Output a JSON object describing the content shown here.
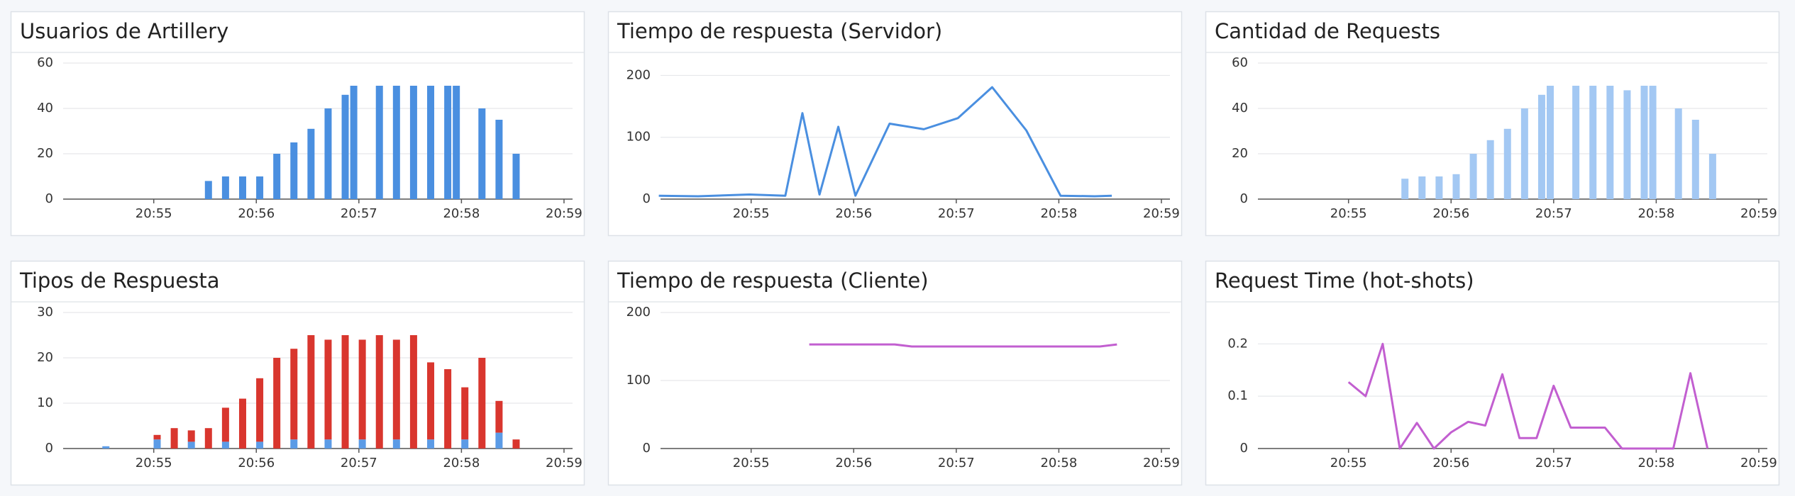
{
  "chart_data": [
    {
      "type": "bar",
      "title": "Usuarios de Artillery",
      "color": "#4a8fe0",
      "x": [
        "20:55:32",
        "20:55:42",
        "20:55:52",
        "20:56:02",
        "20:56:12",
        "20:56:22",
        "20:56:32",
        "20:56:42",
        "20:56:52",
        "20:56:57",
        "20:57:12",
        "20:57:22",
        "20:57:32",
        "20:57:42",
        "20:57:52",
        "20:57:57",
        "20:58:12",
        "20:58:22",
        "20:58:32"
      ],
      "values": [
        8,
        10,
        10,
        10,
        20,
        25,
        31,
        40,
        46,
        50,
        50,
        50,
        50,
        50,
        50,
        50,
        40,
        35,
        20
      ],
      "xlim": [
        "20:54:07",
        "20:59:05"
      ],
      "xticks": [
        "20:55",
        "20:56",
        "20:57",
        "20:58",
        "20:59"
      ],
      "ylim": [
        0,
        60
      ],
      "yticks": [
        0,
        20,
        40,
        60
      ],
      "grid": true
    },
    {
      "type": "line",
      "title": "Tiempo de respuesta (Servidor)",
      "color": "#4a8fe0",
      "x": [
        "20:54:06",
        "20:54:29",
        "20:54:59",
        "20:55:20",
        "20:55:30",
        "20:55:40",
        "20:55:51",
        "20:56:01",
        "20:56:21",
        "20:56:41",
        "20:57:01",
        "20:57:21",
        "20:57:41",
        "20:58:01",
        "20:58:21",
        "20:58:31"
      ],
      "values": [
        5.5,
        4.6,
        7.4,
        5.5,
        139,
        7.4,
        117,
        5.5,
        122,
        113,
        131,
        181,
        111,
        5.5,
        4.6,
        5.5
      ],
      "xlim": [
        "20:54:07",
        "20:59:05"
      ],
      "xticks": [
        "20:55",
        "20:56",
        "20:57",
        "20:58",
        "20:59"
      ],
      "ylim": [
        0,
        220
      ],
      "yticks": [
        0,
        100,
        200
      ],
      "grid": true
    },
    {
      "type": "bar",
      "title": "Cantidad de Requests",
      "color": "#a3c8f3",
      "x": [
        "20:55:33",
        "20:55:43",
        "20:55:53",
        "20:56:03",
        "20:56:13",
        "20:56:23",
        "20:56:33",
        "20:56:43",
        "20:56:53",
        "20:56:58",
        "20:57:13",
        "20:57:23",
        "20:57:33",
        "20:57:43",
        "20:57:53",
        "20:57:58",
        "20:58:13",
        "20:58:23",
        "20:58:33"
      ],
      "values": [
        9,
        10,
        10,
        11,
        20,
        26,
        31,
        40,
        46,
        50,
        50,
        50,
        50,
        48,
        50,
        50,
        40,
        35,
        20
      ],
      "xlim": [
        "20:54:07",
        "20:59:05"
      ],
      "xticks": [
        "20:55",
        "20:56",
        "20:57",
        "20:58",
        "20:59"
      ],
      "ylim": [
        0,
        60
      ],
      "yticks": [
        0,
        20,
        40,
        60
      ],
      "grid": true
    },
    {
      "type": "stacked",
      "title": "Tipos de Respuesta",
      "x": [
        "20:54:32",
        "20:55:02",
        "20:55:12",
        "20:55:22",
        "20:55:32",
        "20:55:42",
        "20:55:52",
        "20:56:02",
        "20:56:12",
        "20:56:22",
        "20:56:32",
        "20:56:42",
        "20:56:52",
        "20:57:02",
        "20:57:12",
        "20:57:22",
        "20:57:32",
        "20:57:42",
        "20:57:52",
        "20:58:02",
        "20:58:12",
        "20:58:22",
        "20:58:32"
      ],
      "series": [
        {
          "color": "#5b9be6",
          "values": [
            0.5,
            2,
            0,
            1.5,
            0,
            1.5,
            0,
            1.5,
            0,
            2,
            0,
            2,
            0,
            2,
            0,
            2,
            0,
            2,
            0,
            2,
            0,
            3.5,
            0
          ]
        },
        {
          "color": "#d9362e",
          "values": [
            0,
            1,
            4.5,
            2.5,
            4.5,
            7.5,
            11,
            14,
            20,
            20,
            25,
            22,
            25,
            22,
            25,
            22,
            25,
            17,
            17.5,
            11.5,
            20,
            7,
            2
          ]
        }
      ],
      "xlim": [
        "20:54:07",
        "20:59:05"
      ],
      "xticks": [
        "20:55",
        "20:56",
        "20:57",
        "20:58",
        "20:59"
      ],
      "ylim": [
        0,
        30
      ],
      "yticks": [
        0,
        10,
        20,
        30
      ],
      "grid": true
    },
    {
      "type": "line",
      "title": "Tiempo de respuesta (Cliente)",
      "color": "#c25fd0",
      "x": [
        "20:55:34",
        "20:55:44",
        "20:55:54",
        "20:56:04",
        "20:56:14",
        "20:56:24",
        "20:56:34",
        "20:56:44",
        "20:56:54",
        "20:57:04",
        "20:57:14",
        "20:57:24",
        "20:57:34",
        "20:57:44",
        "20:57:54",
        "20:58:04",
        "20:58:14",
        "20:58:24",
        "20:58:34"
      ],
      "values": [
        153,
        153,
        153,
        153,
        153,
        153,
        150,
        150,
        150,
        150,
        150,
        150,
        150,
        150,
        150,
        150,
        150,
        150,
        153
      ],
      "xlim": [
        "20:54:07",
        "20:59:05"
      ],
      "xticks": [
        "20:55",
        "20:56",
        "20:57",
        "20:58",
        "20:59"
      ],
      "ylim": [
        0,
        200
      ],
      "yticks": [
        0,
        100,
        200
      ],
      "grid": true
    },
    {
      "type": "line",
      "title": "Request Time (hot-shots)",
      "color": "#c25fd0",
      "x": [
        "20:55:00",
        "20:55:10",
        "20:55:20",
        "20:55:30",
        "20:55:40",
        "20:55:50",
        "20:56:00",
        "20:56:10",
        "20:56:20",
        "20:56:30",
        "20:56:40",
        "20:56:50",
        "20:57:00",
        "20:57:10",
        "20:57:20",
        "20:57:30",
        "20:57:40",
        "20:57:50",
        "20:58:00",
        "20:58:10",
        "20:58:20",
        "20:58:30"
      ],
      "values": [
        0.127,
        0.1,
        0.2,
        0,
        0.049,
        0,
        0.031,
        0.051,
        0.044,
        0.142,
        0.02,
        0.02,
        0.12,
        0.04,
        0.04,
        0.04,
        0,
        0,
        0,
        0,
        0.144,
        0
      ],
      "xlim": [
        "20:54:07",
        "20:59:05"
      ],
      "xticks": [
        "20:55",
        "20:56",
        "20:57",
        "20:58",
        "20:59"
      ],
      "ylim": [
        0,
        0.26
      ],
      "yticks": [
        0,
        0.1,
        0.2
      ],
      "grid": true
    }
  ]
}
